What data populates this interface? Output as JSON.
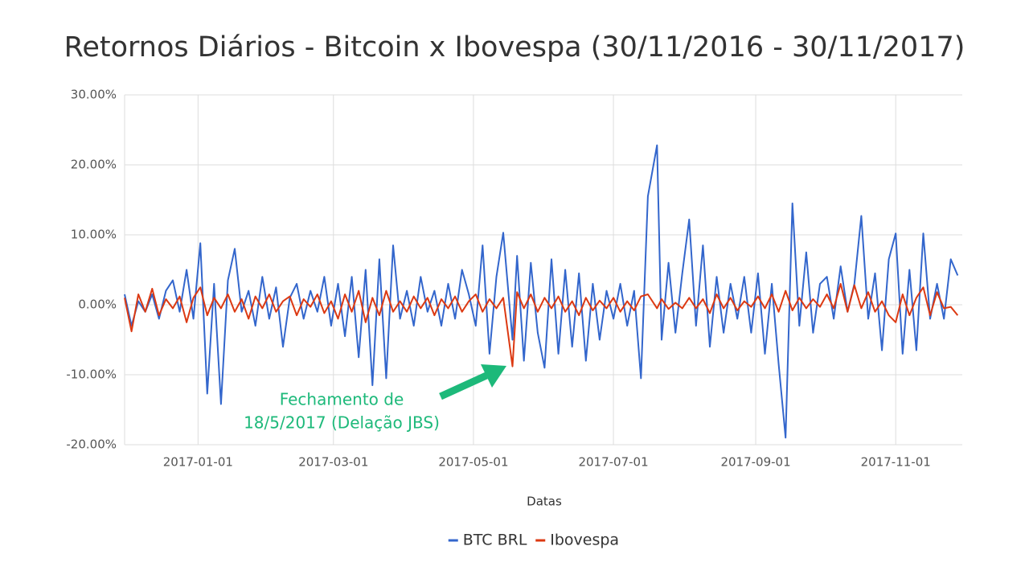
{
  "chart_data": {
    "type": "line",
    "title": "Retornos Diários - Bitcoin x Ibovespa (30/11/2016 - 30/11/2017)",
    "x_label": "Datas",
    "annotation": [
      "Fechamento de",
      "18/5/2017 (Delação JBS)"
    ],
    "x": [
      "2016-11-30",
      "2016-12-03",
      "2016-12-06",
      "2016-12-09",
      "2016-12-12",
      "2016-12-15",
      "2016-12-18",
      "2016-12-21",
      "2016-12-24",
      "2016-12-27",
      "2016-12-30",
      "2017-01-02",
      "2017-01-05",
      "2017-01-08",
      "2017-01-11",
      "2017-01-14",
      "2017-01-17",
      "2017-01-20",
      "2017-01-23",
      "2017-01-26",
      "2017-01-29",
      "2017-02-01",
      "2017-02-04",
      "2017-02-07",
      "2017-02-10",
      "2017-02-13",
      "2017-02-16",
      "2017-02-19",
      "2017-02-22",
      "2017-02-25",
      "2017-02-28",
      "2017-03-03",
      "2017-03-06",
      "2017-03-09",
      "2017-03-12",
      "2017-03-15",
      "2017-03-18",
      "2017-03-21",
      "2017-03-24",
      "2017-03-27",
      "2017-03-30",
      "2017-04-02",
      "2017-04-05",
      "2017-04-08",
      "2017-04-11",
      "2017-04-14",
      "2017-04-17",
      "2017-04-20",
      "2017-04-23",
      "2017-04-26",
      "2017-04-29",
      "2017-05-02",
      "2017-05-05",
      "2017-05-08",
      "2017-05-11",
      "2017-05-14",
      "2017-05-18",
      "2017-05-20",
      "2017-05-23",
      "2017-05-26",
      "2017-05-29",
      "2017-06-01",
      "2017-06-04",
      "2017-06-07",
      "2017-06-10",
      "2017-06-13",
      "2017-06-16",
      "2017-06-19",
      "2017-06-22",
      "2017-06-25",
      "2017-06-28",
      "2017-07-01",
      "2017-07-04",
      "2017-07-07",
      "2017-07-10",
      "2017-07-13",
      "2017-07-16",
      "2017-07-20",
      "2017-07-22",
      "2017-07-25",
      "2017-07-28",
      "2017-07-31",
      "2017-08-03",
      "2017-08-06",
      "2017-08-09",
      "2017-08-12",
      "2017-08-15",
      "2017-08-18",
      "2017-08-21",
      "2017-08-24",
      "2017-08-27",
      "2017-08-30",
      "2017-09-02",
      "2017-09-05",
      "2017-09-08",
      "2017-09-11",
      "2017-09-14",
      "2017-09-17",
      "2017-09-20",
      "2017-09-23",
      "2017-09-26",
      "2017-09-29",
      "2017-10-02",
      "2017-10-05",
      "2017-10-08",
      "2017-10-11",
      "2017-10-14",
      "2017-10-17",
      "2017-10-20",
      "2017-10-23",
      "2017-10-26",
      "2017-10-29",
      "2017-11-01",
      "2017-11-04",
      "2017-11-07",
      "2017-11-10",
      "2017-11-13",
      "2017-11-16",
      "2017-11-19",
      "2017-11-22",
      "2017-11-25",
      "2017-11-28"
    ],
    "series": [
      {
        "name": "BTC BRL",
        "color": "#3366cc",
        "values": [
          1.5,
          -3,
          0.5,
          -1,
          1.5,
          -2,
          2,
          3.5,
          -1,
          5,
          -2,
          8.8,
          -12.7,
          3,
          -14.2,
          3.5,
          8,
          -1,
          2,
          -3,
          4,
          -2,
          2.5,
          -6,
          1,
          3,
          -2,
          2,
          -1,
          4,
          -3,
          3,
          -4.5,
          4,
          -7.5,
          5,
          -11.5,
          6.5,
          -10.5,
          8.5,
          -2,
          2,
          -3,
          4,
          -1,
          2,
          -3,
          3,
          -2,
          5,
          1.5,
          -3,
          8.5,
          -7,
          4,
          10.3,
          -5,
          7,
          -8,
          6,
          -4,
          -9,
          6.5,
          -7,
          5,
          -6,
          4.5,
          -8,
          3,
          -5,
          2,
          -2,
          3,
          -3,
          2,
          -10.5,
          15.5,
          22.8,
          -5,
          6,
          -4,
          4.5,
          12.2,
          -3,
          8.5,
          -6,
          4,
          -4,
          3,
          -2,
          4,
          -4,
          4.5,
          -7,
          3,
          -8.5,
          -19,
          14.5,
          -3,
          7.5,
          -4,
          3,
          4,
          -2,
          5.5,
          -1,
          3,
          12.7,
          -2,
          4.5,
          -6.5,
          6.5,
          10.2,
          -7,
          5,
          -6.5,
          10.2,
          -2,
          3,
          -2,
          6.5,
          4.2
        ]
      },
      {
        "name": "Ibovespa",
        "color": "#dc3912",
        "values": [
          1,
          -3.8,
          1.5,
          -1,
          2.3,
          -1.5,
          0.8,
          -0.5,
          1.2,
          -2.5,
          1,
          2.5,
          -1.5,
          1,
          -0.5,
          1.5,
          -1,
          0.8,
          -2,
          1.2,
          -0.5,
          1.5,
          -1,
          0.5,
          1.2,
          -1.5,
          0.8,
          -0.3,
          1.5,
          -1.2,
          0.5,
          -2,
          1.5,
          -1,
          2,
          -2.5,
          1,
          -1.5,
          2,
          -1,
          0.5,
          -1,
          1.2,
          -0.5,
          1,
          -1.5,
          0.8,
          -0.5,
          1.2,
          -1,
          0.5,
          1.5,
          -1,
          0.8,
          -0.5,
          1,
          -8.8,
          1.8,
          -0.5,
          1.5,
          -1,
          1,
          -0.5,
          1.2,
          -1,
          0.5,
          -1.5,
          1,
          -0.8,
          0.6,
          -0.5,
          1,
          -1,
          0.5,
          -0.8,
          1.2,
          1.5,
          -0.5,
          0.8,
          -0.6,
          0.3,
          -0.5,
          1,
          -0.5,
          0.8,
          -1.2,
          1.5,
          -0.5,
          1,
          -0.8,
          0.5,
          -0.3,
          1.2,
          -0.5,
          1.5,
          -1,
          2,
          -0.8,
          1,
          -0.5,
          0.8,
          -0.3,
          1.5,
          -0.5,
          3,
          -1,
          2.8,
          -0.5,
          1.8,
          -1,
          0.5,
          -1.5,
          -2.5,
          1.5,
          -1.5,
          1,
          2.5,
          -1.5,
          1.8,
          -0.5,
          -0.3,
          -1.5
        ]
      }
    ],
    "xlim": [
      "2016-11-30",
      "2017-11-30"
    ],
    "xticks": [
      "2017-01-01",
      "2017-03-01",
      "2017-05-01",
      "2017-07-01",
      "2017-09-01",
      "2017-11-01"
    ],
    "ylim": [
      -20,
      30
    ],
    "yticks": [
      {
        "value": -20,
        "label": "-20.00%"
      },
      {
        "value": -10,
        "label": "-10.00%"
      },
      {
        "value": 0,
        "label": "0.00%"
      },
      {
        "value": 10,
        "label": "10.00%"
      },
      {
        "value": 20,
        "label": "20.00%"
      },
      {
        "value": 30,
        "label": "30.00%"
      }
    ],
    "grid": true,
    "legend": "bottom"
  }
}
